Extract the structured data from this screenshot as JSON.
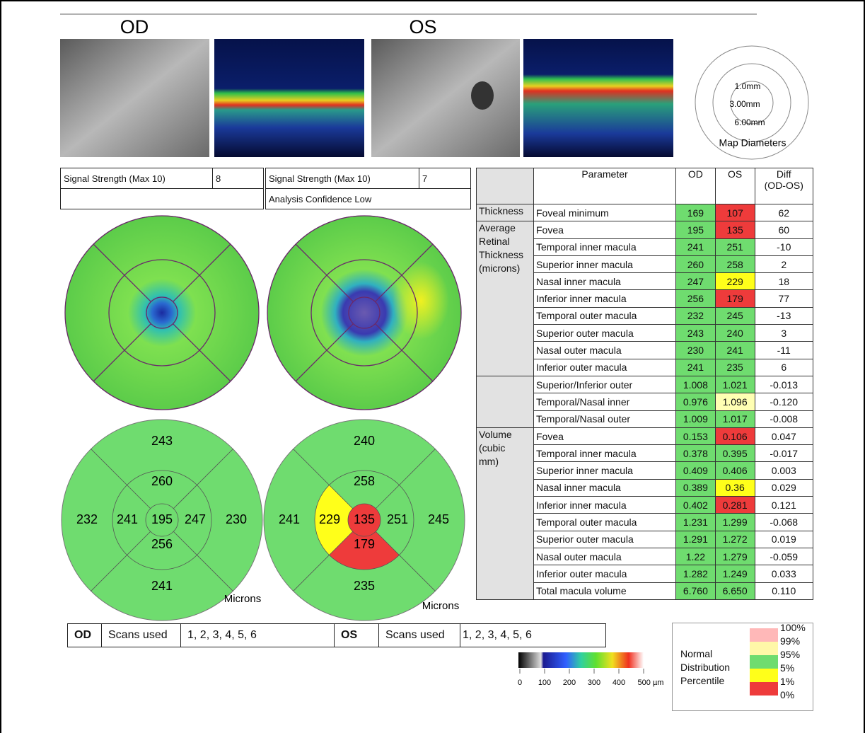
{
  "header": {
    "od": "OD",
    "os": "OS"
  },
  "map_diameters": {
    "labels": [
      "1.0mm",
      "3.00mm",
      "6.00mm"
    ],
    "title": "Map Diameters"
  },
  "signal": {
    "od": {
      "label": "Signal Strength (Max 10)",
      "value": "8"
    },
    "os": {
      "label": "Signal Strength (Max 10)",
      "value": "7",
      "note": "Analysis Confidence Low"
    }
  },
  "sector_maps": {
    "od": {
      "center": "195",
      "inner_top": "260",
      "inner_left": "241",
      "inner_right": "247",
      "inner_bottom": "256",
      "outer_top": "243",
      "outer_left": "232",
      "outer_right": "230",
      "outer_bottom": "241",
      "unit": "Microns",
      "fills": {}
    },
    "os": {
      "center": "135",
      "inner_top": "258",
      "inner_left": "229",
      "inner_right": "251",
      "inner_bottom": "179",
      "outer_top": "240",
      "outer_left": "241",
      "outer_right": "245",
      "outer_bottom": "235",
      "unit": "Microns",
      "fills": {
        "center": "#ee3b3b",
        "inner_left": "#ffff1a",
        "inner_bottom": "#ee3b3b"
      }
    }
  },
  "table": {
    "columns": [
      "Parameter",
      "OD",
      "OS",
      "Diff\n(OD-OS)"
    ],
    "groups": [
      {
        "label": "Thickness",
        "rows": [
          {
            "param": "Foveal minimum",
            "od": "169",
            "os": "107",
            "diff": "62",
            "od_color": "#6fdc6f",
            "os_color": "#ee3b3b"
          }
        ]
      },
      {
        "label": "Average\nRetinal\nThickness\n(microns)",
        "rows": [
          {
            "param": "Fovea",
            "od": "195",
            "os": "135",
            "diff": "60",
            "od_color": "#6fdc6f",
            "os_color": "#ee3b3b"
          },
          {
            "param": "Temporal inner macula",
            "od": "241",
            "os": "251",
            "diff": "-10",
            "od_color": "#6fdc6f",
            "os_color": "#6fdc6f"
          },
          {
            "param": "Superior inner macula",
            "od": "260",
            "os": "258",
            "diff": "2",
            "od_color": "#6fdc6f",
            "os_color": "#6fdc6f"
          },
          {
            "param": "Nasal inner macula",
            "od": "247",
            "os": "229",
            "diff": "18",
            "od_color": "#6fdc6f",
            "os_color": "#ffff1a"
          },
          {
            "param": "Inferior inner macula",
            "od": "256",
            "os": "179",
            "diff": "77",
            "od_color": "#6fdc6f",
            "os_color": "#ee3b3b"
          },
          {
            "param": "Temporal outer macula",
            "od": "232",
            "os": "245",
            "diff": "-13",
            "od_color": "#6fdc6f",
            "os_color": "#6fdc6f"
          },
          {
            "param": "Superior outer macula",
            "od": "243",
            "os": "240",
            "diff": "3",
            "od_color": "#6fdc6f",
            "os_color": "#6fdc6f"
          },
          {
            "param": "Nasal outer macula",
            "od": "230",
            "os": "241",
            "diff": "-11",
            "od_color": "#6fdc6f",
            "os_color": "#6fdc6f"
          },
          {
            "param": "Inferior outer macula",
            "od": "241",
            "os": "235",
            "diff": "6",
            "od_color": "#6fdc6f",
            "os_color": "#6fdc6f"
          }
        ]
      },
      {
        "rows": [
          {
            "param": "Superior/Inferior outer",
            "od": "1.008",
            "os": "1.021",
            "diff": "-0.013",
            "od_color": "#6fdc6f",
            "os_color": "#6fdc6f"
          },
          {
            "param": "Temporal/Nasal inner",
            "od": "0.976",
            "os": "1.096",
            "diff": "-0.120",
            "od_color": "#6fdc6f",
            "os_color": "#ffffb3"
          },
          {
            "param": "Temporal/Nasal outer",
            "od": "1.009",
            "os": "1.017",
            "diff": "-0.008",
            "od_color": "#6fdc6f",
            "os_color": "#6fdc6f"
          }
        ]
      },
      {
        "label": "Volume\n(cubic\nmm)",
        "rows": [
          {
            "param": "Fovea",
            "od": "0.153",
            "os": "0.106",
            "diff": "0.047",
            "od_color": "#6fdc6f",
            "os_color": "#ee3b3b"
          },
          {
            "param": "Temporal inner macula",
            "od": "0.378",
            "os": "0.395",
            "diff": "-0.017",
            "od_color": "#6fdc6f",
            "os_color": "#6fdc6f"
          },
          {
            "param": "Superior inner macula",
            "od": "0.409",
            "os": "0.406",
            "diff": "0.003",
            "od_color": "#6fdc6f",
            "os_color": "#6fdc6f"
          },
          {
            "param": "Nasal inner macula",
            "od": "0.389",
            "os": "0.36",
            "diff": "0.029",
            "od_color": "#6fdc6f",
            "os_color": "#ffff1a"
          },
          {
            "param": "Inferior inner macula",
            "od": "0.402",
            "os": "0.281",
            "diff": "0.121",
            "od_color": "#6fdc6f",
            "os_color": "#ee3b3b"
          },
          {
            "param": "Temporal outer macula",
            "od": "1.231",
            "os": "1.299",
            "diff": "-0.068",
            "od_color": "#6fdc6f",
            "os_color": "#6fdc6f"
          },
          {
            "param": "Superior outer macula",
            "od": "1.291",
            "os": "1.272",
            "diff": "0.019",
            "od_color": "#6fdc6f",
            "os_color": "#6fdc6f"
          },
          {
            "param": "Nasal outer macula",
            "od": "1.22",
            "os": "1.279",
            "diff": "-0.059",
            "od_color": "#6fdc6f",
            "os_color": "#6fdc6f"
          },
          {
            "param": "Inferior outer macula",
            "od": "1.282",
            "os": "1.249",
            "diff": "0.033",
            "od_color": "#6fdc6f",
            "os_color": "#6fdc6f"
          },
          {
            "param": "Total macula volume",
            "od": "6.760",
            "os": "6.650",
            "diff": "0.110",
            "od_color": "#6fdc6f",
            "os_color": "#6fdc6f"
          }
        ]
      }
    ]
  },
  "scans": {
    "od": {
      "eye": "OD",
      "label": "Scans used",
      "value": "1, 2, 3, 4, 5, 6"
    },
    "os": {
      "eye": "OS",
      "label": "Scans used",
      "value": "1, 2, 3, 4, 5, 6"
    }
  },
  "color_scale": {
    "labels": [
      "0",
      "100",
      "200",
      "300",
      "400",
      "500 µm"
    ]
  },
  "legend": {
    "title": "Normal\nDistribution\nPercentile",
    "labels": [
      "100%",
      "99%",
      "95%",
      "5%",
      "1%",
      "0%"
    ],
    "colors": [
      "#ffb8b8",
      "#fff8a8",
      "#6fdc6f",
      "#ffff1a",
      "#ee3b3b"
    ]
  }
}
